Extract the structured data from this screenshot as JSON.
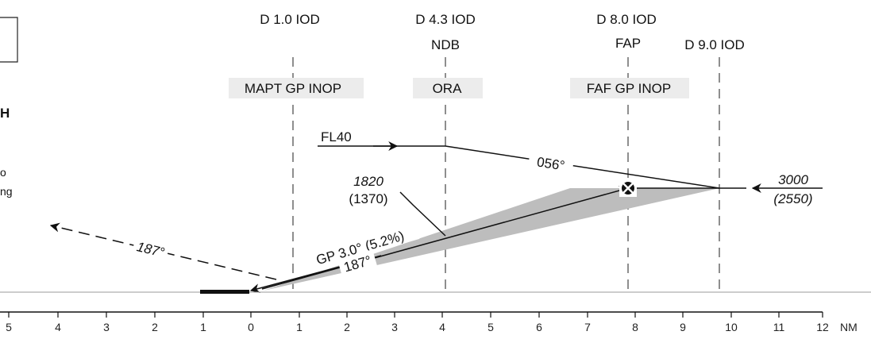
{
  "fixes": [
    {
      "dist": 1.0,
      "top": "D 1.0 IOD",
      "bottom": "MAPT GP INOP"
    },
    {
      "dist": 4.3,
      "top": "D 4.3 IOD",
      "mid": "NDB",
      "bottom": "ORA"
    },
    {
      "dist": 8.0,
      "top": "D 8.0 IOD",
      "mid": "FAP",
      "bottom": "FAF GP INOP"
    },
    {
      "dist": 9.0,
      "top": "D 9.0 IOD"
    }
  ],
  "altitudes": {
    "fl40": "FL40",
    "inbound_course": "056°",
    "entry_alt": "3000",
    "entry_height": "(2550)",
    "check_alt": "1820",
    "check_height": "(1370)"
  },
  "glidepath": {
    "label": "GP 3.0° (5.2%)",
    "course": "187°"
  },
  "missed": {
    "course": "187°"
  },
  "scale": {
    "labels": [
      "5",
      "4",
      "3",
      "2",
      "1",
      "0",
      "1",
      "2",
      "3",
      "4",
      "5",
      "6",
      "7",
      "8",
      "9",
      "10",
      "11",
      "12"
    ],
    "unit": "NM"
  },
  "left_edge": {
    "bold_letter": "H",
    "small_digit": "o",
    "small_text": "ng"
  }
}
